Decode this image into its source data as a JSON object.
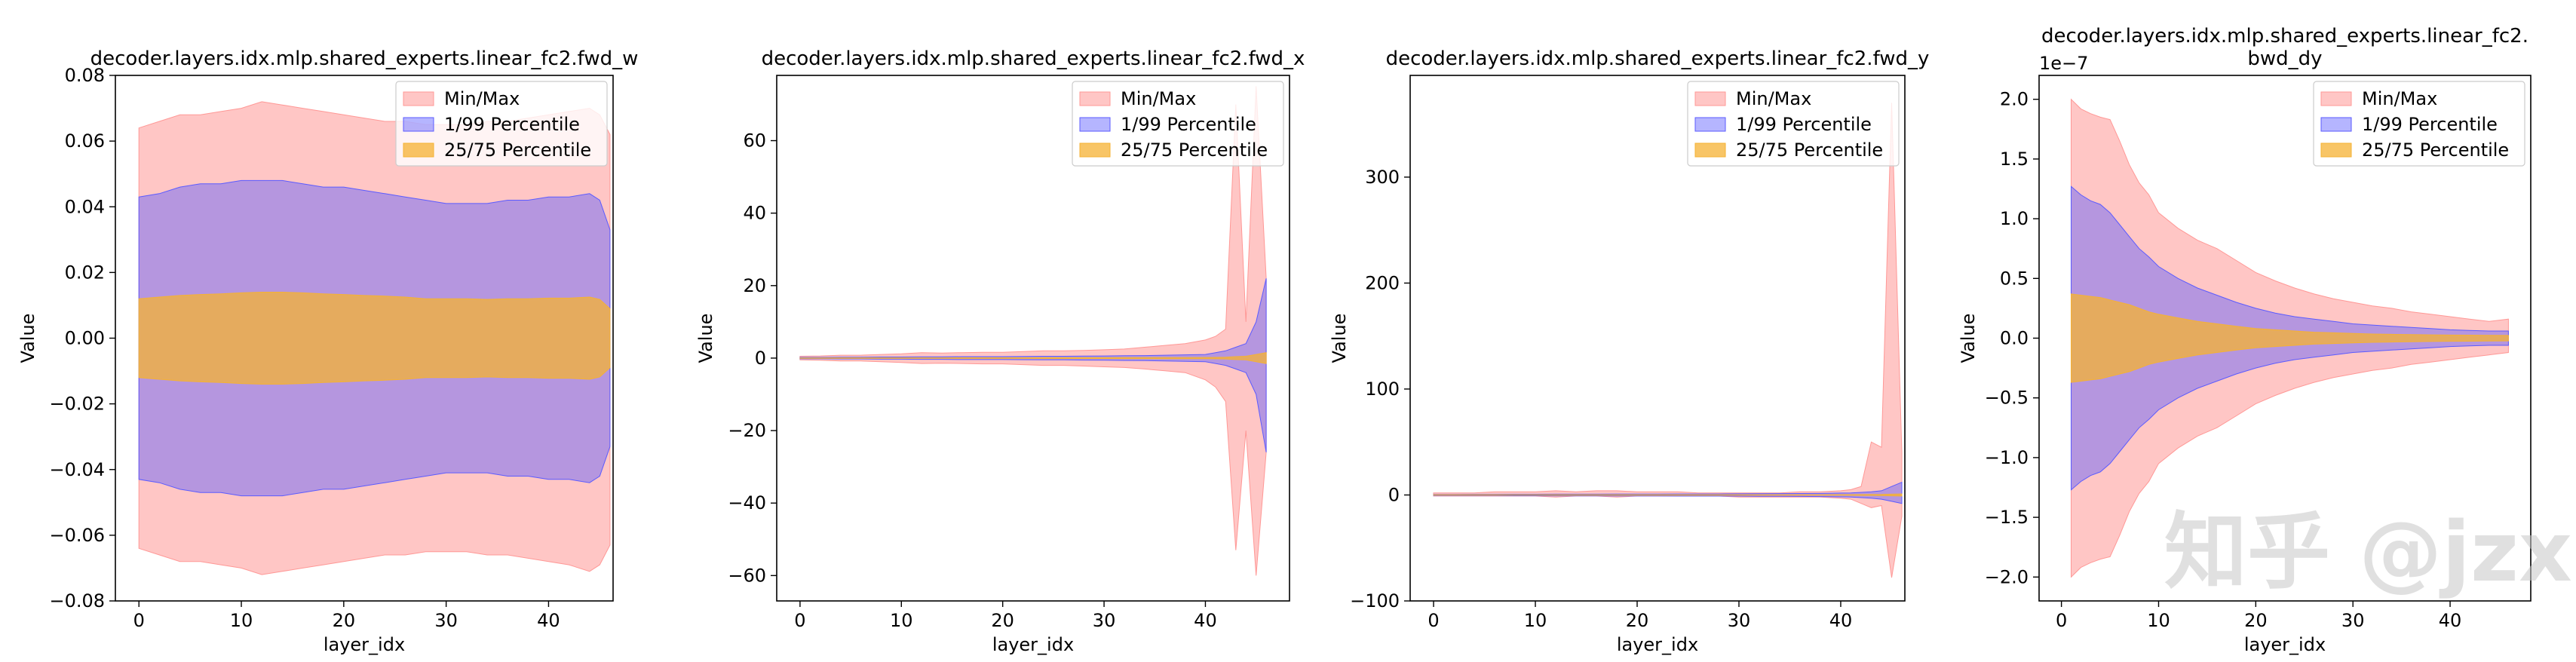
{
  "colors": {
    "minmax": "#ff9896",
    "p1_99": "#5b5bff",
    "p25_75": "#f5b233"
  },
  "watermark": "知乎 @jzx",
  "chart_data": [
    {
      "type": "area",
      "title": "decoder.layers.idx.mlp.shared_experts.linear_fc2.fwd_w",
      "xlabel": "layer_idx",
      "ylabel": "Value",
      "xlim": [
        -2.3,
        46.3
      ],
      "ylim": [
        -0.08,
        0.08
      ],
      "xticks": [
        0,
        10,
        20,
        30,
        40
      ],
      "xtick_labels": [
        "0",
        "10",
        "20",
        "30",
        "40"
      ],
      "yticks": [
        -0.08,
        -0.06,
        -0.04,
        -0.02,
        0.0,
        0.02,
        0.04,
        0.06,
        0.08
      ],
      "ytick_labels": [
        "−0.08",
        "−0.06",
        "−0.04",
        "−0.02",
        "0.00",
        "0.02",
        "0.04",
        "0.06",
        "0.08"
      ],
      "offset_text": "",
      "legend_position": "top-right",
      "legend": [
        "Min/Max",
        "1/99 Percentile",
        "25/75 Percentile"
      ],
      "x": [
        0,
        2,
        4,
        6,
        8,
        10,
        12,
        14,
        16,
        18,
        20,
        22,
        24,
        26,
        28,
        30,
        32,
        34,
        36,
        38,
        40,
        42,
        44,
        45,
        46
      ],
      "series": [
        {
          "name": "Min/Max",
          "upper": [
            0.064,
            0.066,
            0.068,
            0.068,
            0.069,
            0.07,
            0.072,
            0.071,
            0.07,
            0.069,
            0.068,
            0.067,
            0.066,
            0.066,
            0.065,
            0.065,
            0.065,
            0.066,
            0.066,
            0.067,
            0.068,
            0.069,
            0.07,
            0.068,
            0.062
          ],
          "lower": [
            -0.064,
            -0.066,
            -0.068,
            -0.068,
            -0.069,
            -0.07,
            -0.072,
            -0.071,
            -0.07,
            -0.069,
            -0.068,
            -0.067,
            -0.066,
            -0.066,
            -0.065,
            -0.065,
            -0.065,
            -0.066,
            -0.066,
            -0.067,
            -0.068,
            -0.069,
            -0.071,
            -0.069,
            -0.063
          ]
        },
        {
          "name": "1/99 Percentile",
          "upper": [
            0.043,
            0.044,
            0.046,
            0.047,
            0.047,
            0.048,
            0.048,
            0.048,
            0.047,
            0.046,
            0.046,
            0.045,
            0.044,
            0.043,
            0.042,
            0.041,
            0.041,
            0.041,
            0.042,
            0.042,
            0.043,
            0.043,
            0.044,
            0.042,
            0.033
          ],
          "lower": [
            -0.043,
            -0.044,
            -0.046,
            -0.047,
            -0.047,
            -0.048,
            -0.048,
            -0.048,
            -0.047,
            -0.046,
            -0.046,
            -0.045,
            -0.044,
            -0.043,
            -0.042,
            -0.041,
            -0.041,
            -0.041,
            -0.042,
            -0.042,
            -0.043,
            -0.043,
            -0.044,
            -0.042,
            -0.033
          ]
        },
        {
          "name": "25/75 Percentile",
          "upper": [
            0.012,
            0.0125,
            0.013,
            0.0133,
            0.0135,
            0.0138,
            0.014,
            0.014,
            0.0138,
            0.0135,
            0.0133,
            0.013,
            0.0128,
            0.0125,
            0.012,
            0.012,
            0.012,
            0.0118,
            0.012,
            0.012,
            0.0122,
            0.0122,
            0.0125,
            0.0118,
            0.009
          ],
          "lower": [
            -0.012,
            -0.0125,
            -0.013,
            -0.0133,
            -0.0135,
            -0.0138,
            -0.014,
            -0.014,
            -0.0138,
            -0.0135,
            -0.0133,
            -0.013,
            -0.0128,
            -0.0125,
            -0.012,
            -0.012,
            -0.012,
            -0.0118,
            -0.012,
            -0.012,
            -0.0122,
            -0.0122,
            -0.0125,
            -0.0118,
            -0.009
          ]
        }
      ]
    },
    {
      "type": "area",
      "title": "decoder.layers.idx.mlp.shared_experts.linear_fc2.fwd_x",
      "xlabel": "layer_idx",
      "ylabel": "Value",
      "xlim": [
        -2.3,
        48.3
      ],
      "ylim": [
        -67,
        78
      ],
      "xticks": [
        0,
        10,
        20,
        30,
        40
      ],
      "xtick_labels": [
        "0",
        "10",
        "20",
        "30",
        "40"
      ],
      "yticks": [
        -60,
        -40,
        -20,
        0,
        20,
        40,
        60
      ],
      "ytick_labels": [
        "−60",
        "−40",
        "−20",
        "0",
        "20",
        "40",
        "60"
      ],
      "offset_text": "",
      "legend_position": "top-right",
      "legend": [
        "Min/Max",
        "1/99 Percentile",
        "25/75 Percentile"
      ],
      "x": [
        0,
        2,
        4,
        6,
        8,
        10,
        12,
        14,
        16,
        18,
        20,
        22,
        24,
        26,
        28,
        30,
        32,
        34,
        36,
        38,
        40,
        41,
        42,
        43,
        44,
        45,
        46
      ],
      "series": [
        {
          "name": "Min/Max",
          "upper": [
            0.5,
            0.6,
            0.8,
            0.8,
            1.0,
            1.2,
            1.5,
            1.4,
            1.5,
            1.6,
            1.6,
            1.8,
            2.0,
            2.0,
            2.1,
            2.3,
            2.5,
            3.0,
            3.5,
            4.0,
            5.0,
            6.0,
            8.0,
            70.0,
            10.0,
            75.0,
            22.0
          ],
          "lower": [
            -0.5,
            -0.6,
            -0.8,
            -0.8,
            -1.0,
            -1.2,
            -1.5,
            -1.4,
            -1.5,
            -1.6,
            -1.6,
            -1.8,
            -2.0,
            -2.0,
            -2.2,
            -2.4,
            -2.6,
            -3.0,
            -3.5,
            -4.0,
            -6.0,
            -8.0,
            -12.0,
            -53.0,
            -20.0,
            -60.0,
            -26.0
          ]
        },
        {
          "name": "1/99 Percentile",
          "upper": [
            0.2,
            0.2,
            0.25,
            0.25,
            0.3,
            0.3,
            0.35,
            0.35,
            0.4,
            0.4,
            0.4,
            0.45,
            0.5,
            0.5,
            0.55,
            0.6,
            0.65,
            0.7,
            0.8,
            0.9,
            1.0,
            1.5,
            2.0,
            3.0,
            4.0,
            10.0,
            22.0
          ],
          "lower": [
            -0.2,
            -0.2,
            -0.25,
            -0.25,
            -0.3,
            -0.3,
            -0.35,
            -0.35,
            -0.4,
            -0.4,
            -0.4,
            -0.45,
            -0.5,
            -0.5,
            -0.55,
            -0.6,
            -0.65,
            -0.7,
            -0.8,
            -0.9,
            -1.0,
            -1.5,
            -2.0,
            -3.0,
            -4.0,
            -10.0,
            -26.0
          ]
        },
        {
          "name": "25/75 Percentile",
          "upper": [
            0.05,
            0.05,
            0.06,
            0.06,
            0.07,
            0.07,
            0.08,
            0.08,
            0.09,
            0.09,
            0.1,
            0.1,
            0.11,
            0.11,
            0.12,
            0.12,
            0.13,
            0.14,
            0.15,
            0.16,
            0.18,
            0.2,
            0.25,
            0.4,
            0.5,
            1.0,
            1.5
          ],
          "lower": [
            -0.05,
            -0.05,
            -0.06,
            -0.06,
            -0.07,
            -0.07,
            -0.08,
            -0.08,
            -0.09,
            -0.09,
            -0.1,
            -0.1,
            -0.11,
            -0.11,
            -0.12,
            -0.12,
            -0.13,
            -0.14,
            -0.15,
            -0.16,
            -0.18,
            -0.2,
            -0.25,
            -0.4,
            -0.5,
            -1.0,
            -1.5
          ]
        }
      ]
    },
    {
      "type": "area",
      "title": "decoder.layers.idx.mlp.shared_experts.linear_fc2.fwd_y",
      "xlabel": "layer_idx",
      "ylabel": "Value",
      "xlim": [
        -2.3,
        46.3
      ],
      "ylim": [
        -100,
        396
      ],
      "xticks": [
        0,
        10,
        20,
        30,
        40
      ],
      "xtick_labels": [
        "0",
        "10",
        "20",
        "30",
        "40"
      ],
      "yticks": [
        -100,
        0,
        100,
        200,
        300
      ],
      "ytick_labels": [
        "−100",
        "0",
        "100",
        "200",
        "300"
      ],
      "offset_text": "",
      "legend_position": "top-right",
      "legend": [
        "Min/Max",
        "1/99 Percentile",
        "25/75 Percentile"
      ],
      "x": [
        0,
        2,
        4,
        6,
        8,
        10,
        12,
        14,
        16,
        18,
        20,
        22,
        24,
        26,
        28,
        30,
        32,
        34,
        36,
        38,
        40,
        41,
        42,
        43,
        44,
        45,
        46
      ],
      "series": [
        {
          "name": "Min/Max",
          "upper": [
            2,
            2,
            2,
            3,
            3,
            3,
            4,
            3,
            4,
            4,
            3,
            3,
            3,
            2,
            2,
            2,
            2,
            2,
            3,
            3,
            4,
            5,
            8,
            50,
            45,
            370,
            40
          ],
          "lower": [
            -1,
            -1,
            -1,
            -1,
            -1,
            -1,
            -2,
            -1,
            -1,
            -2,
            -1,
            -1,
            -1,
            -1,
            -1,
            -2,
            -2,
            -2,
            -2,
            -2,
            -3,
            -4,
            -8,
            -12,
            -10,
            -78,
            -20
          ]
        },
        {
          "name": "1/99 Percentile",
          "upper": [
            0.5,
            0.5,
            0.6,
            0.6,
            0.7,
            0.7,
            0.8,
            0.8,
            0.8,
            0.9,
            0.9,
            0.9,
            1.0,
            1.0,
            1.0,
            1.1,
            1.2,
            1.3,
            1.4,
            1.5,
            1.8,
            2.0,
            2.5,
            3.0,
            4.0,
            8.0,
            12.0
          ],
          "lower": [
            -0.5,
            -0.5,
            -0.6,
            -0.6,
            -0.7,
            -0.7,
            -0.8,
            -0.8,
            -0.8,
            -0.9,
            -0.9,
            -0.9,
            -1.0,
            -1.0,
            -1.0,
            -1.1,
            -1.2,
            -1.3,
            -1.4,
            -1.5,
            -1.8,
            -2.0,
            -2.5,
            -3.0,
            -4.0,
            -6.0,
            -8.0
          ]
        },
        {
          "name": "25/75 Percentile",
          "upper": [
            0.1,
            0.1,
            0.1,
            0.12,
            0.12,
            0.12,
            0.14,
            0.14,
            0.15,
            0.15,
            0.15,
            0.16,
            0.16,
            0.17,
            0.17,
            0.18,
            0.18,
            0.19,
            0.2,
            0.2,
            0.25,
            0.3,
            0.35,
            0.4,
            0.5,
            0.8,
            1.0
          ],
          "lower": [
            -0.1,
            -0.1,
            -0.1,
            -0.12,
            -0.12,
            -0.12,
            -0.14,
            -0.14,
            -0.15,
            -0.15,
            -0.15,
            -0.16,
            -0.16,
            -0.17,
            -0.17,
            -0.18,
            -0.18,
            -0.19,
            -0.2,
            -0.2,
            -0.25,
            -0.3,
            -0.35,
            -0.4,
            -0.5,
            -0.8,
            -1.0
          ]
        }
      ]
    },
    {
      "type": "area",
      "title": "decoder.layers.idx.mlp.shared_experts.linear_fc2.\nbwd_dy",
      "xlabel": "layer_idx",
      "ylabel": "Value",
      "xlim": [
        -2.3,
        48.3
      ],
      "ylim": [
        -2.2,
        2.2
      ],
      "xticks": [
        0,
        10,
        20,
        30,
        40
      ],
      "xtick_labels": [
        "0",
        "10",
        "20",
        "30",
        "40"
      ],
      "yticks": [
        -2.0,
        -1.5,
        -1.0,
        -0.5,
        0.0,
        0.5,
        1.0,
        1.5,
        2.0
      ],
      "ytick_labels": [
        "−2.0",
        "−1.5",
        "−1.0",
        "−0.5",
        "0.0",
        "0.5",
        "1.0",
        "1.5",
        "2.0"
      ],
      "offset_text": "1e−7",
      "legend_position": "top-right",
      "legend": [
        "Min/Max",
        "1/99 Percentile",
        "25/75 Percentile"
      ],
      "x": [
        1,
        2,
        3,
        4,
        5,
        6,
        7,
        8,
        9,
        10,
        12,
        14,
        16,
        18,
        20,
        22,
        24,
        26,
        28,
        30,
        32,
        34,
        36,
        38,
        40,
        42,
        44,
        46
      ],
      "series": [
        {
          "name": "Min/Max",
          "upper": [
            2.0,
            1.92,
            1.88,
            1.85,
            1.83,
            1.65,
            1.45,
            1.3,
            1.2,
            1.05,
            0.92,
            0.82,
            0.75,
            0.65,
            0.55,
            0.48,
            0.42,
            0.37,
            0.33,
            0.3,
            0.27,
            0.25,
            0.22,
            0.2,
            0.18,
            0.16,
            0.14,
            0.16
          ],
          "lower": [
            -2.0,
            -1.92,
            -1.88,
            -1.85,
            -1.83,
            -1.65,
            -1.45,
            -1.3,
            -1.2,
            -1.05,
            -0.92,
            -0.82,
            -0.75,
            -0.65,
            -0.55,
            -0.48,
            -0.42,
            -0.37,
            -0.33,
            -0.3,
            -0.27,
            -0.25,
            -0.22,
            -0.2,
            -0.18,
            -0.16,
            -0.14,
            -0.12
          ]
        },
        {
          "name": "1/99 Percentile",
          "upper": [
            1.27,
            1.2,
            1.15,
            1.12,
            1.05,
            0.95,
            0.85,
            0.75,
            0.68,
            0.6,
            0.5,
            0.42,
            0.36,
            0.3,
            0.25,
            0.21,
            0.18,
            0.16,
            0.14,
            0.12,
            0.11,
            0.1,
            0.09,
            0.08,
            0.07,
            0.065,
            0.06,
            0.06
          ],
          "lower": [
            -1.27,
            -1.2,
            -1.15,
            -1.12,
            -1.05,
            -0.95,
            -0.85,
            -0.75,
            -0.68,
            -0.6,
            -0.5,
            -0.42,
            -0.36,
            -0.3,
            -0.25,
            -0.21,
            -0.18,
            -0.16,
            -0.14,
            -0.12,
            -0.11,
            -0.1,
            -0.09,
            -0.08,
            -0.07,
            -0.065,
            -0.06,
            -0.06
          ]
        },
        {
          "name": "25/75 Percentile",
          "upper": [
            0.37,
            0.36,
            0.35,
            0.34,
            0.32,
            0.3,
            0.28,
            0.25,
            0.22,
            0.2,
            0.17,
            0.14,
            0.12,
            0.1,
            0.08,
            0.07,
            0.06,
            0.05,
            0.045,
            0.04,
            0.035,
            0.032,
            0.03,
            0.028,
            0.026,
            0.025,
            0.024,
            0.023
          ],
          "lower": [
            -0.37,
            -0.36,
            -0.35,
            -0.34,
            -0.32,
            -0.3,
            -0.28,
            -0.25,
            -0.22,
            -0.2,
            -0.17,
            -0.14,
            -0.12,
            -0.1,
            -0.08,
            -0.07,
            -0.06,
            -0.05,
            -0.045,
            -0.04,
            -0.035,
            -0.032,
            -0.03,
            -0.028,
            -0.026,
            -0.025,
            -0.024,
            -0.023
          ]
        }
      ]
    }
  ]
}
